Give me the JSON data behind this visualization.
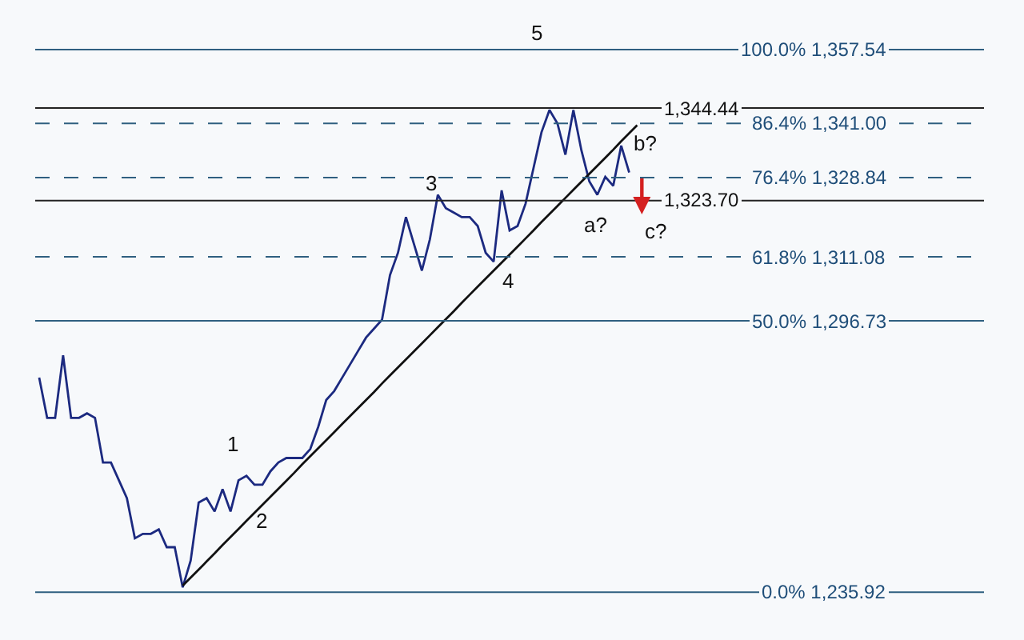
{
  "chart_data": {
    "type": "line",
    "categories": [
      null,
      null,
      null,
      null,
      null,
      null,
      null,
      null,
      null,
      null,
      null,
      null,
      null,
      null,
      null,
      null,
      null,
      null,
      null,
      null,
      null,
      null,
      null,
      null,
      null,
      null,
      null,
      null,
      null,
      null,
      null,
      null,
      null,
      null,
      null,
      null,
      null,
      null,
      null,
      null,
      null,
      null,
      null,
      null,
      null,
      null,
      null,
      null,
      null,
      null,
      null,
      null,
      null,
      null,
      null,
      null,
      null,
      null,
      null,
      null,
      null,
      null,
      null,
      null,
      null,
      null,
      null,
      null,
      null,
      null,
      null,
      null,
      null,
      null,
      null,
      null,
      null,
      null,
      null,
      null,
      null,
      null,
      null,
      null,
      null,
      null,
      null,
      null,
      null,
      null,
      null,
      null,
      null,
      null,
      null,
      null,
      null,
      null,
      null,
      null,
      null,
      null,
      null,
      null,
      null,
      null,
      null,
      null,
      null,
      null,
      null,
      null,
      null,
      null,
      null,
      null,
      null,
      null,
      null
    ],
    "series": [
      {
        "color": "#1c2a80",
        "values": [
          1284,
          1275,
          1275,
          1289,
          1275,
          1275,
          1276,
          1275,
          1265,
          1265,
          1261,
          1257,
          1248,
          1249,
          1249,
          1250,
          1246,
          1246,
          1237,
          1243,
          1256,
          1257,
          1254,
          1259,
          1254,
          1261,
          1262,
          1260,
          1260,
          1263,
          1265,
          1266,
          1266,
          1266,
          1268,
          1273,
          1279,
          1281,
          1284,
          1287,
          1290,
          1293,
          1295,
          1297,
          1307,
          1312,
          1320,
          1314,
          1308,
          1315,
          1325,
          1322,
          1321,
          1320,
          1320,
          1318,
          1312,
          1310,
          1326,
          1317,
          1318,
          1323,
          1331,
          1339,
          1344,
          1341,
          1334,
          1344,
          1335,
          1328,
          1325,
          1329,
          1327,
          1336,
          1330,
          null,
          null,
          null,
          null,
          null,
          null,
          null,
          null,
          null,
          null,
          null,
          null,
          null,
          null,
          null,
          null,
          null,
          null,
          null,
          null,
          null,
          null,
          null,
          null,
          null,
          null,
          null,
          null,
          null,
          null,
          null,
          null,
          null,
          null,
          null,
          null,
          null,
          null,
          null,
          null,
          null,
          null,
          null,
          null
        ]
      },
      {
        "color": "#111111",
        "values": [
          null,
          null,
          null,
          null,
          null,
          null,
          null,
          null,
          null,
          null,
          null,
          null,
          null,
          null,
          null,
          null,
          null,
          null,
          1237.4,
          1239.2,
          1241.0,
          1242.8,
          1244.6,
          1246.5,
          1248.3,
          1250.1,
          1251.9,
          1253.7,
          1255.5,
          1257.3,
          1259.1,
          1260.9,
          1262.7,
          1264.6,
          1266.4,
          1268.2,
          1270.0,
          1271.8,
          1273.6,
          1275.4,
          1277.2,
          1279.0,
          1280.8,
          1282.7,
          1284.5,
          1286.3,
          1288.1,
          1289.9,
          1291.7,
          1293.5,
          1295.3,
          1297.1,
          1298.9,
          1300.8,
          1302.6,
          1304.4,
          1306.2,
          1308.0,
          1309.8,
          1311.6,
          1313.4,
          1315.2,
          1317.0,
          1318.9,
          1320.7,
          1322.5,
          1324.3,
          1326.1,
          1327.9,
          1329.7,
          1331.5,
          1333.3,
          1335.1,
          1337.0,
          1338.8,
          1340.6,
          null,
          null,
          null,
          null,
          null,
          null,
          null,
          null,
          null,
          null,
          null,
          null,
          null,
          null,
          null,
          null,
          null,
          null,
          null,
          null,
          null,
          null,
          null,
          null,
          null,
          null,
          null,
          null,
          null,
          null,
          null,
          null,
          null,
          null,
          null,
          null,
          null,
          null,
          null,
          null,
          null,
          null,
          null
        ]
      }
    ],
    "ylim": [
      1225.2,
      1368.66
    ],
    "marker": "none",
    "line_style": "solid",
    "ref_lines": [
      {
        "axis": "y",
        "value": 1357.54,
        "label": "100.0% 1,357.54",
        "color": "#2f5f80",
        "line_style": "solid"
      },
      {
        "axis": "y",
        "value": 1344.44,
        "label": "1,344.44",
        "color": "#222222",
        "line_style": "solid"
      },
      {
        "axis": "y",
        "value": 1341.0,
        "label": "86.4% 1,341.00",
        "color": "#2f5f80",
        "line_style": "dashed"
      },
      {
        "axis": "y",
        "value": 1328.84,
        "label": "76.4% 1,328.84",
        "color": "#2f5f80",
        "line_style": "dashed"
      },
      {
        "axis": "y",
        "value": 1323.7,
        "label": "1,323.70",
        "color": "#222222",
        "line_style": "solid"
      },
      {
        "axis": "y",
        "value": 1311.08,
        "label": "61.8% 1,311.08",
        "color": "#2f5f80",
        "line_style": "dashed"
      },
      {
        "axis": "y",
        "value": 1296.73,
        "label": "50.0% 1,296.73",
        "color": "#2f5f80",
        "line_style": "solid"
      },
      {
        "axis": "y",
        "value": 1235.92,
        "label": "0.0% 1,235.92",
        "color": "#2f5f80",
        "line_style": "solid"
      }
    ],
    "annotations": [
      "5",
      "3",
      "4",
      "1",
      "2",
      "a?",
      "b?",
      "c?"
    ]
  }
}
